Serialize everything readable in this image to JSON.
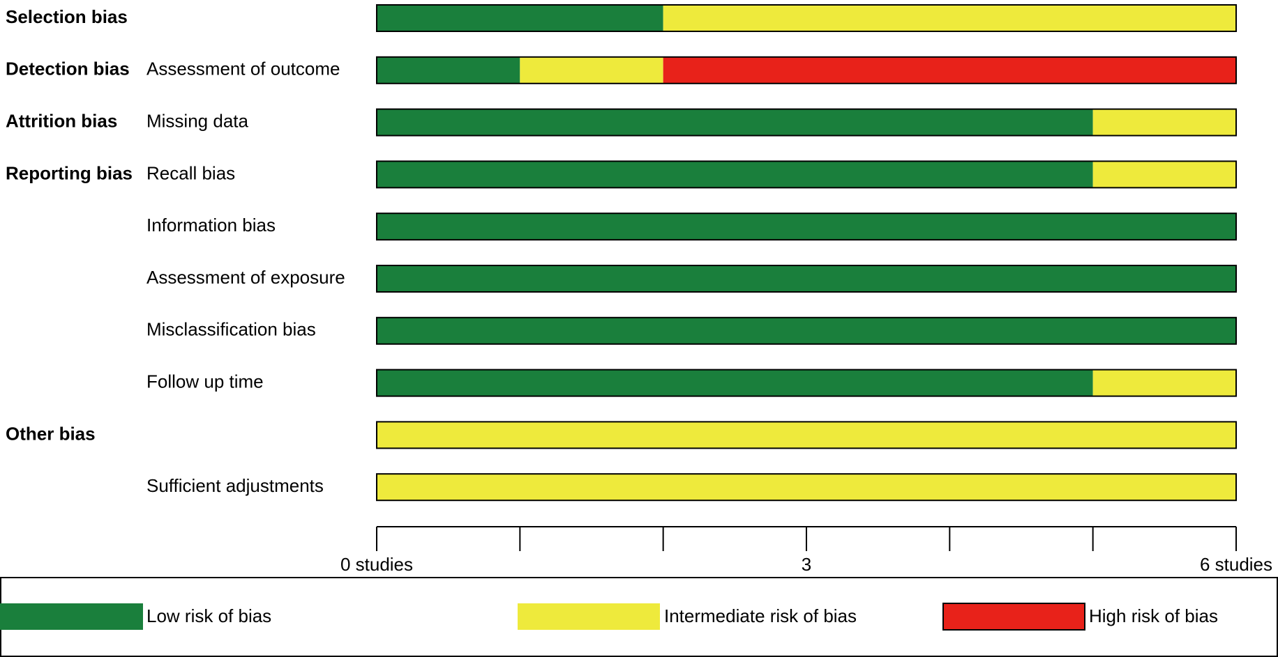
{
  "chart_data": {
    "type": "stacked-barh",
    "groups": [
      "Selection bias",
      "Detection bias",
      "Attrition bias",
      "Reporting bias",
      null,
      null,
      null,
      null,
      "Other bias",
      null
    ],
    "categories": [
      null,
      "Assessment of outcome",
      "Missing data",
      "Recall bias",
      "Information bias",
      "Assessment of exposure",
      "Misclassification bias",
      "Follow up time",
      null,
      "Sufficient adjustments"
    ],
    "series": [
      {
        "name": "Low risk of bias",
        "color": "#1a7f3c",
        "values": [
          2,
          1,
          5,
          5,
          6,
          6,
          6,
          5,
          0,
          0
        ]
      },
      {
        "name": "Intermediate risk of bias",
        "color": "#eeea3c",
        "values": [
          4,
          1,
          1,
          1,
          0,
          0,
          0,
          1,
          6,
          6
        ]
      },
      {
        "name": "High risk of bias",
        "color": "#e8221a",
        "values": [
          0,
          4,
          0,
          0,
          0,
          0,
          0,
          0,
          0,
          0
        ]
      }
    ],
    "xlim": [
      0,
      6
    ],
    "xticks": [
      {
        "value": 0,
        "label": "0 studies"
      },
      {
        "value": 1,
        "label": null
      },
      {
        "value": 2,
        "label": null
      },
      3,
      {
        "value": 4,
        "label": null
      },
      {
        "value": 5,
        "label": null
      },
      {
        "value": 6,
        "label": "6 studies"
      }
    ]
  }
}
